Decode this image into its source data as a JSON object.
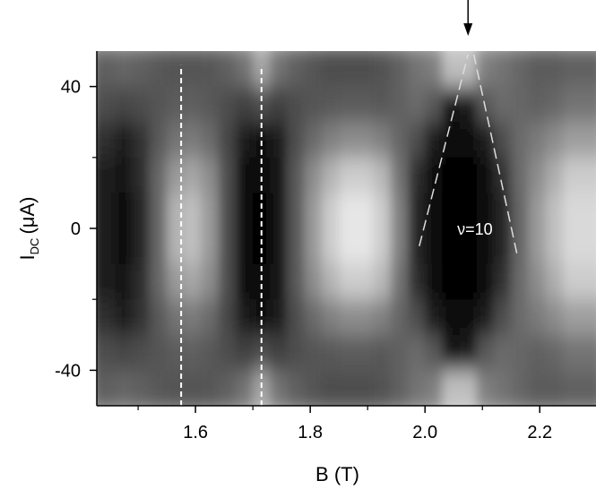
{
  "chart_data": {
    "type": "heatmap",
    "xlabel": "B (T)",
    "ylabel": {
      "main": "I",
      "sub": "DC",
      "unit": "(μA)"
    },
    "xlim": [
      1.428,
      2.298
    ],
    "ylim": [
      -50,
      50
    ],
    "xticks": [
      1.6,
      1.8,
      {
        "value": 2,
        "label": "2.0"
      },
      2.2
    ],
    "xminor": [
      1.5,
      1.7,
      1.9,
      2.1
    ],
    "yticks": [
      -40,
      0,
      40
    ],
    "yminor": [
      -20,
      20
    ],
    "zlim": [
      0,
      1
    ],
    "colors": [
      "#000000",
      "#ffffff"
    ],
    "x": [
      1.445,
      1.475,
      1.505,
      1.535,
      1.565,
      1.595,
      1.625,
      1.655,
      1.685,
      1.715,
      1.745,
      1.775,
      1.805,
      1.835,
      1.865,
      1.895,
      1.925,
      1.955,
      1.985,
      2.015,
      2.045,
      2.075,
      2.105,
      2.135,
      2.165,
      2.195,
      2.225,
      2.255,
      2.285
    ],
    "y": [
      45,
      35,
      25,
      15,
      5,
      -5,
      -15,
      -25,
      -35,
      -45
    ],
    "z": [
      [
        0.38,
        0.4,
        0.38,
        0.35,
        0.33,
        0.33,
        0.34,
        0.38,
        0.45,
        0.65,
        0.45,
        0.38,
        0.33,
        0.3,
        0.3,
        0.3,
        0.32,
        0.38,
        0.45,
        0.5,
        0.75,
        0.75,
        0.5,
        0.45,
        0.4,
        0.36,
        0.36,
        0.38,
        0.38
      ],
      [
        0.3,
        0.28,
        0.3,
        0.33,
        0.36,
        0.37,
        0.35,
        0.3,
        0.25,
        0.3,
        0.25,
        0.3,
        0.33,
        0.35,
        0.36,
        0.36,
        0.35,
        0.38,
        0.42,
        0.35,
        0.08,
        0.1,
        0.35,
        0.42,
        0.4,
        0.38,
        0.4,
        0.45,
        0.45
      ],
      [
        0.18,
        0.12,
        0.2,
        0.35,
        0.45,
        0.48,
        0.42,
        0.28,
        0.1,
        0.06,
        0.12,
        0.3,
        0.42,
        0.5,
        0.55,
        0.55,
        0.5,
        0.4,
        0.3,
        0.1,
        0.03,
        0.03,
        0.1,
        0.3,
        0.42,
        0.48,
        0.55,
        0.62,
        0.62
      ],
      [
        0.12,
        0.07,
        0.18,
        0.4,
        0.6,
        0.65,
        0.55,
        0.3,
        0.06,
        0.03,
        0.08,
        0.35,
        0.55,
        0.7,
        0.8,
        0.8,
        0.72,
        0.45,
        0.18,
        0.04,
        0.02,
        0.02,
        0.04,
        0.2,
        0.42,
        0.55,
        0.68,
        0.8,
        0.8
      ],
      [
        0.1,
        0.05,
        0.15,
        0.4,
        0.7,
        0.75,
        0.6,
        0.3,
        0.05,
        0.02,
        0.08,
        0.35,
        0.6,
        0.8,
        0.9,
        0.9,
        0.8,
        0.5,
        0.15,
        0.03,
        0.02,
        0.02,
        0.03,
        0.15,
        0.4,
        0.6,
        0.75,
        0.85,
        0.85
      ],
      [
        0.1,
        0.05,
        0.15,
        0.4,
        0.7,
        0.75,
        0.6,
        0.3,
        0.05,
        0.02,
        0.08,
        0.35,
        0.6,
        0.8,
        0.9,
        0.9,
        0.8,
        0.5,
        0.15,
        0.03,
        0.02,
        0.02,
        0.03,
        0.15,
        0.4,
        0.6,
        0.75,
        0.85,
        0.85
      ],
      [
        0.12,
        0.07,
        0.18,
        0.4,
        0.6,
        0.65,
        0.55,
        0.3,
        0.06,
        0.03,
        0.08,
        0.35,
        0.55,
        0.7,
        0.8,
        0.8,
        0.72,
        0.45,
        0.18,
        0.04,
        0.02,
        0.02,
        0.04,
        0.2,
        0.42,
        0.55,
        0.68,
        0.8,
        0.8
      ],
      [
        0.18,
        0.12,
        0.2,
        0.35,
        0.45,
        0.48,
        0.42,
        0.28,
        0.1,
        0.06,
        0.12,
        0.3,
        0.42,
        0.5,
        0.55,
        0.55,
        0.5,
        0.4,
        0.3,
        0.1,
        0.03,
        0.03,
        0.1,
        0.3,
        0.42,
        0.48,
        0.55,
        0.62,
        0.62
      ],
      [
        0.3,
        0.28,
        0.3,
        0.33,
        0.36,
        0.37,
        0.35,
        0.3,
        0.25,
        0.3,
        0.25,
        0.3,
        0.33,
        0.35,
        0.36,
        0.36,
        0.35,
        0.38,
        0.42,
        0.35,
        0.08,
        0.1,
        0.35,
        0.42,
        0.4,
        0.38,
        0.4,
        0.45,
        0.45
      ],
      [
        0.38,
        0.4,
        0.38,
        0.35,
        0.33,
        0.33,
        0.34,
        0.38,
        0.45,
        0.65,
        0.45,
        0.38,
        0.33,
        0.3,
        0.3,
        0.3,
        0.32,
        0.38,
        0.45,
        0.5,
        0.75,
        0.75,
        0.5,
        0.45,
        0.4,
        0.36,
        0.36,
        0.38,
        0.38
      ]
    ],
    "vlines": [
      {
        "x": 1.575,
        "y": [
          -50,
          46
        ]
      },
      {
        "x": 1.715,
        "y": [
          -50,
          46
        ]
      }
    ],
    "guides": [
      {
        "x": [
          1.99,
          2.075
        ],
        "y": [
          -5,
          49
        ]
      },
      {
        "x": [
          2.16,
          2.085
        ],
        "y": [
          -7,
          49
        ]
      }
    ],
    "arrow": {
      "x": 2.075
    },
    "annotation": "ν=10"
  }
}
